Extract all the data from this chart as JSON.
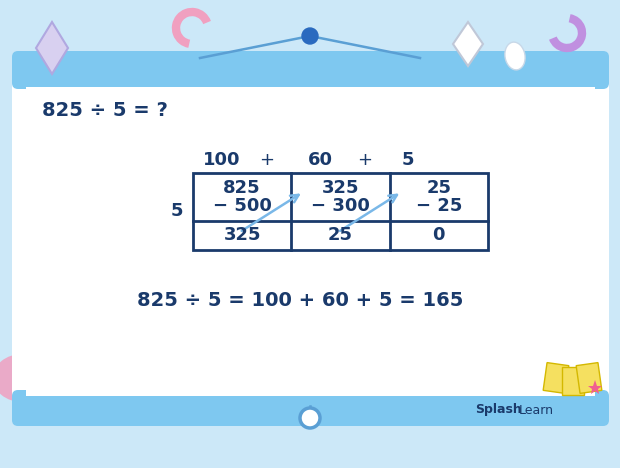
{
  "bg_color": "#ffffff",
  "board_border_color": "#7ec8f0",
  "board_top_color": "#7ec8f0",
  "dark_blue": "#1a3a6b",
  "light_blue": "#7ec8f0",
  "arrow_color": "#7ab8e8",
  "question": "825 ÷ 5 = ?",
  "answer_line": "825 ÷ 5 = 100 + 60 + 5 = 165",
  "col_headers": [
    "100",
    "+",
    "60",
    "+",
    "5"
  ],
  "row_label": "5",
  "cell_row1": [
    "825",
    "325",
    "25"
  ],
  "cell_row2": [
    "− 500",
    "− 300",
    "− 25"
  ],
  "cell_row3": [
    "325",
    "25",
    "0"
  ],
  "splashlearn_bold": "Splash",
  "splashlearn_normal": "Learn",
  "string_color": "#5a9fd4",
  "pink_color": "#f0a0c0",
  "purple_color": "#c090e0",
  "diamond_color": "#d8d0f0",
  "diamond_edge": "#b0a8e0",
  "white_diamond_edge": "#c0c8d8",
  "note_color": "#f5e060",
  "note_edge": "#d4b800",
  "star_color": "#f06090"
}
